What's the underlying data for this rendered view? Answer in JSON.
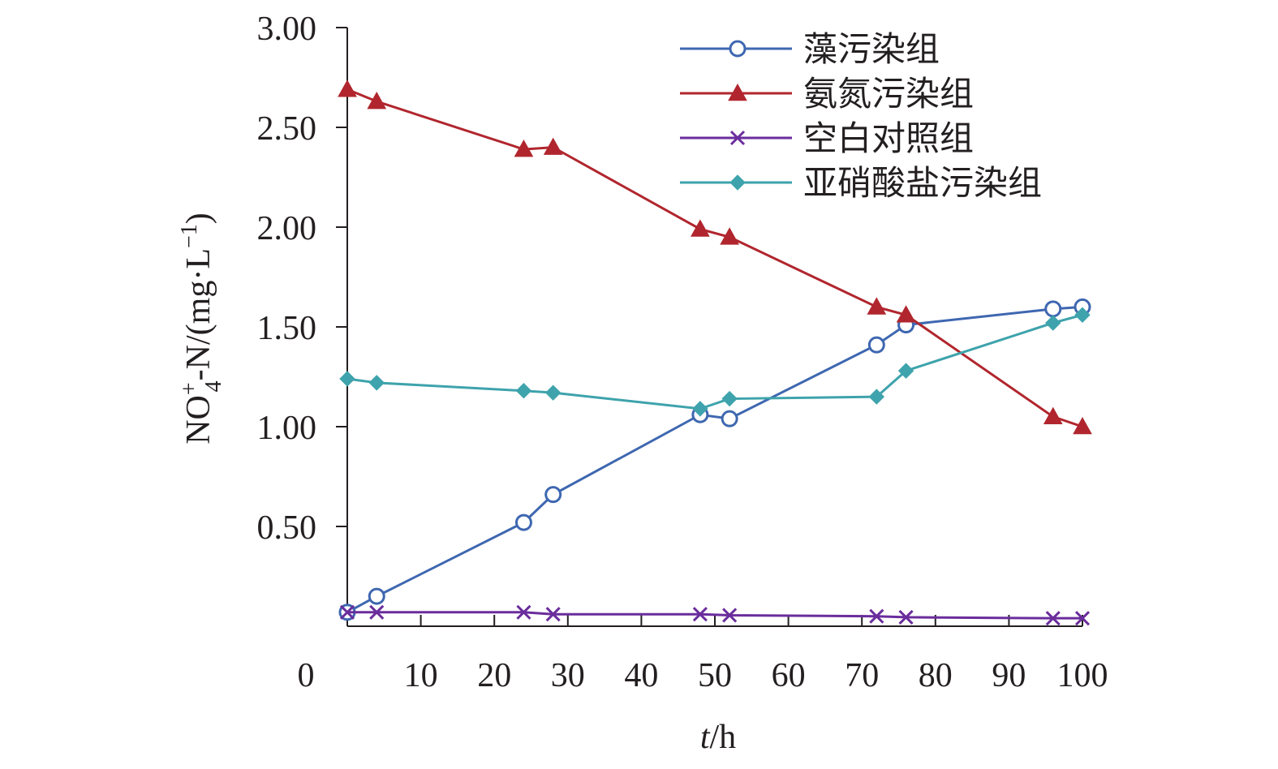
{
  "chart_data": {
    "type": "line",
    "title": "",
    "xlabel": "t/h",
    "xlabel_italic": "t",
    "xlabel_rest": "/h",
    "ylabel": "NO4+-N/(mg·L−1)",
    "ylabel_parts": {
      "base": "NO",
      "sup": "+",
      "sub": "4",
      "rest": "-N/(mg·L",
      "exp": "−1",
      "close": ")"
    },
    "xlim": [
      0,
      100
    ],
    "ylim": [
      0,
      3.0
    ],
    "xticks": [
      0,
      10,
      20,
      30,
      40,
      50,
      60,
      70,
      80,
      90,
      100
    ],
    "xtick_labels": [
      "0",
      "10",
      "20",
      "30",
      "40",
      "50",
      "60",
      "70",
      "80",
      "90",
      "100"
    ],
    "yticks": [
      0.5,
      1.0,
      1.5,
      2.0,
      2.5,
      3.0
    ],
    "ytick_labels": [
      "0.50",
      "1.00",
      "1.50",
      "2.00",
      "2.50",
      "3.00"
    ],
    "legend_position": "top-right",
    "grid": false,
    "series": [
      {
        "name": "藻污染组",
        "color": "#3e67b0",
        "marker": "circle",
        "x": [
          0,
          4,
          24,
          28,
          48,
          52,
          72,
          76,
          96,
          100
        ],
        "y": [
          0.07,
          0.15,
          0.52,
          0.66,
          1.06,
          1.04,
          1.41,
          1.51,
          1.59,
          1.6
        ]
      },
      {
        "name": "氨氮污染组",
        "color": "#b1262e",
        "marker": "triangle",
        "x": [
          0,
          4,
          24,
          28,
          48,
          52,
          72,
          76,
          96,
          100
        ],
        "y": [
          2.69,
          2.63,
          2.39,
          2.4,
          1.99,
          1.95,
          1.6,
          1.56,
          1.05,
          1.0
        ]
      },
      {
        "name": "空白对照组",
        "color": "#6a2d9c",
        "marker": "x",
        "x": [
          0,
          4,
          24,
          28,
          48,
          52,
          72,
          76,
          96,
          100
        ],
        "y": [
          0.07,
          0.07,
          0.07,
          0.06,
          0.06,
          0.055,
          0.05,
          0.045,
          0.04,
          0.04
        ]
      },
      {
        "name": "亚硝酸盐污染组",
        "color": "#3ea3ac",
        "marker": "diamond",
        "x": [
          0,
          4,
          24,
          28,
          48,
          52,
          72,
          76,
          96,
          100
        ],
        "y": [
          1.24,
          1.22,
          1.18,
          1.17,
          1.09,
          1.14,
          1.15,
          1.28,
          1.52,
          1.56
        ]
      }
    ]
  }
}
